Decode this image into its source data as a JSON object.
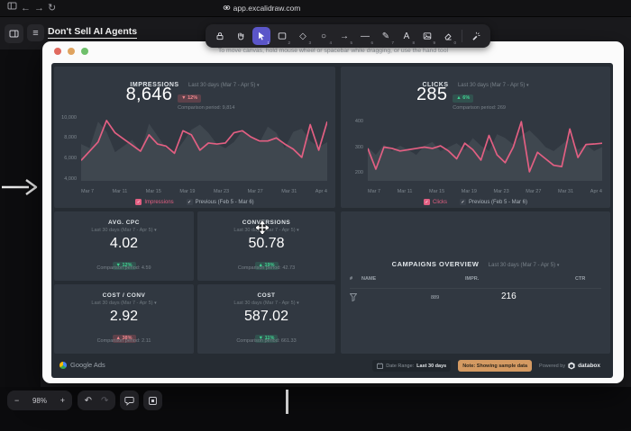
{
  "colors": {
    "accent_pink": "#e25f82",
    "previous_area": "#3f474f",
    "badge_green_text": "#41d291",
    "badge_red_text": "#f0888f",
    "active_tool_bg": "#5b56c9",
    "sample_note_bg": "#d49a62",
    "traffic_red": "#e0695e",
    "traffic_yellow": "#dfa35f",
    "traffic_green": "#6fbf6b"
  },
  "browser": {
    "url": "app.excalidraw.com",
    "nav_icons": [
      "panel-icon",
      "back-icon",
      "forward-icon",
      "reload-icon",
      "link-icon"
    ],
    "back_glyph": "←",
    "forward_glyph": "→",
    "reload_glyph": "↻"
  },
  "excalidraw": {
    "doc_title": "Don't Sell AI Agents",
    "hint": "To move canvas, hold mouse wheel or spacebar while dragging, or use the hand tool",
    "hamburger_glyph": "≡",
    "toolbar": {
      "tools": [
        {
          "icon": "lock-icon",
          "num": ""
        },
        {
          "icon": "hand-icon",
          "num": ""
        },
        {
          "icon": "cursor-icon",
          "num": "1",
          "active": true
        },
        {
          "icon": "rectangle-icon",
          "num": "2"
        },
        {
          "icon": "diamond-icon",
          "glyph": "◇",
          "num": "3"
        },
        {
          "icon": "ellipse-icon",
          "glyph": "○",
          "num": "4"
        },
        {
          "icon": "arrow-icon",
          "glyph": "→",
          "num": "5"
        },
        {
          "icon": "line-icon",
          "glyph": "—",
          "num": "6"
        },
        {
          "icon": "draw-icon",
          "glyph": "✎",
          "num": "7"
        },
        {
          "icon": "text-icon",
          "glyph": "A",
          "num": "8"
        },
        {
          "icon": "image-icon",
          "num": "9"
        },
        {
          "icon": "eraser-icon",
          "num": "0"
        },
        {
          "icon": "laser-icon",
          "num": "",
          "divider_before": true
        }
      ]
    },
    "bottom_bar": {
      "zoom_out": "−",
      "zoom_level": "98%",
      "zoom_in": "+",
      "undo_glyph": "↶",
      "redo_glyph": "↷",
      "icons": [
        "comment-icon",
        "frames-icon"
      ]
    }
  },
  "dashboard": {
    "metrics": [
      {
        "label": "IMPRESSIONS",
        "period": "Last 30 days (Mar 7 - Apr 5)",
        "caret": "▾",
        "value": "8,646",
        "delta_arrow": "▼",
        "delta": "12%",
        "delta_color": "red",
        "comparison": "Comparison period: 9,814"
      },
      {
        "label": "CLICKS",
        "period": "Last 30 days (Mar 7 - Apr 5)",
        "caret": "▾",
        "value": "285",
        "delta_arrow": "▲",
        "delta": "6%",
        "delta_color": "green",
        "comparison": "Comparison period: 269"
      },
      {
        "label": "AVG. CPC",
        "period": "Last 30 days (Mar 7 - Apr 5)",
        "caret": "▾",
        "value": "4.02",
        "delta_arrow": "▼",
        "delta": "12%",
        "delta_color": "green",
        "comparison": "Comparison period: 4.59"
      },
      {
        "label": "CONVERSIONS",
        "period": "Last 30 days (Mar 7 - Apr 5)",
        "caret": "▾",
        "value": "50.78",
        "delta_arrow": "▲",
        "delta": "19%",
        "delta_color": "green",
        "comparison": "Comparison period: 42.73"
      },
      {
        "label": "COST / CONV",
        "period": "Last 30 days (Mar 7 - Apr 5)",
        "caret": "▾",
        "value": "2.92",
        "delta_arrow": "▲",
        "delta": "38%",
        "delta_color": "red",
        "comparison": "Comparison period: 2.11"
      },
      {
        "label": "COST",
        "period": "Last 30 days (Mar 7 - Apr 5)",
        "caret": "▾",
        "value": "587.02",
        "delta_arrow": "▼",
        "delta": "11%",
        "delta_color": "green",
        "comparison": "Comparison period: 661.33"
      }
    ],
    "campaigns": {
      "title": "CAMPAIGNS OVERVIEW",
      "period": "Last 30 days (Mar 7 - Apr 5)",
      "caret": "▾",
      "headers": [
        "#",
        "NAME",
        "IMPR.",
        "CTR"
      ],
      "row": {
        "icon": "funnel-icon",
        "impr": "889",
        "value": "216"
      }
    },
    "footer": {
      "source": "Google Ads",
      "daterange_label": "Date Range:",
      "daterange_value": "Last 30 days",
      "note": "Note: Showing sample data",
      "powered_by": "Powered by",
      "brand": "databox"
    }
  },
  "chart_data": [
    {
      "type": "line",
      "title": "IMPRESSIONS",
      "categories": [
        "Mar 7",
        "Mar 11",
        "Mar 15",
        "Mar 19",
        "Mar 23",
        "Mar 27",
        "Mar 31",
        "Apr 4"
      ],
      "ylim": [
        3800,
        10400
      ],
      "yticks": [
        10000,
        8000,
        6000,
        4000
      ],
      "ytick_labels": [
        "10,000",
        "8,000",
        "6,000",
        "4,000"
      ],
      "grid": false,
      "legend_position": "bottom",
      "series": [
        {
          "name": "Previous (Feb 5 - Mar 6)",
          "style": "area",
          "color": "#3f474f",
          "values": [
            7400,
            7000,
            9600,
            8600,
            6600,
            7200,
            7800,
            6600,
            9400,
            8200,
            7000,
            6500,
            7600,
            8800,
            9300,
            8500,
            7400,
            7000,
            7600,
            8700,
            8100,
            7500,
            9100,
            8500,
            7000,
            8600,
            8900,
            7700,
            7100,
            7600
          ]
        },
        {
          "name": "Impressions",
          "style": "line",
          "color": "#e25f82",
          "values": [
            5800,
            6700,
            7600,
            9700,
            8500,
            7900,
            7300,
            6700,
            8300,
            7400,
            7200,
            6500,
            8700,
            8300,
            6800,
            7500,
            7400,
            7500,
            8500,
            8700,
            8100,
            7700,
            7700,
            8000,
            7400,
            6900,
            6100,
            9300,
            6800,
            9600
          ]
        }
      ],
      "legend": [
        {
          "label": "Impressions",
          "color": "#e25f82",
          "text_color": "#e25f82"
        },
        {
          "label": "Previous (Feb 5 - Mar 6)",
          "color": "#3a414b",
          "text_color": "#aab2ba"
        }
      ]
    },
    {
      "type": "line",
      "title": "CLICKS",
      "categories": [
        "Mar 7",
        "Mar 11",
        "Mar 15",
        "Mar 19",
        "Mar 23",
        "Mar 27",
        "Mar 31",
        "Apr 4"
      ],
      "ylim": [
        170,
        430
      ],
      "yticks": [
        400,
        300,
        200
      ],
      "ytick_labels": [
        "400",
        "300",
        "200"
      ],
      "grid": false,
      "legend_position": "bottom",
      "series": [
        {
          "name": "Previous (Feb 5 - Mar 6)",
          "style": "area",
          "color": "#3f474f",
          "values": [
            300,
            270,
            310,
            285,
            305,
            290,
            270,
            305,
            320,
            285,
            300,
            315,
            290,
            335,
            305,
            285,
            350,
            335,
            310,
            345,
            365,
            335,
            300,
            285,
            310,
            335,
            290,
            310,
            285,
            300
          ]
        },
        {
          "name": "Clicks",
          "style": "line",
          "color": "#e25f82",
          "values": [
            295,
            215,
            300,
            295,
            285,
            290,
            295,
            300,
            295,
            305,
            285,
            255,
            315,
            290,
            250,
            345,
            270,
            240,
            300,
            398,
            205,
            280,
            255,
            230,
            225,
            370,
            260,
            310,
            312,
            315
          ]
        }
      ],
      "legend": [
        {
          "label": "Clicks",
          "color": "#e25f82",
          "text_color": "#e25f82"
        },
        {
          "label": "Previous (Feb 5 - Mar 6)",
          "color": "#3a414b",
          "text_color": "#aab2ba"
        }
      ]
    }
  ]
}
